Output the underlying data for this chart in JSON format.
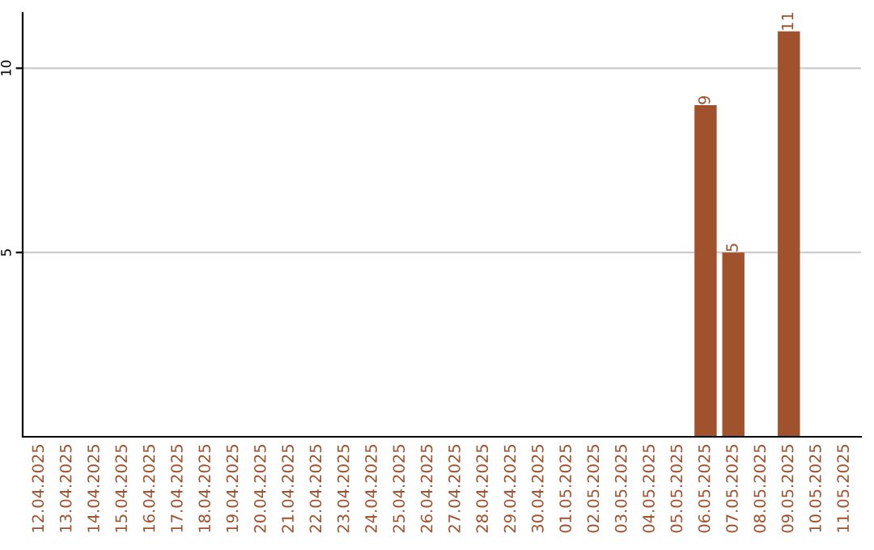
{
  "chart_data": {
    "type": "bar",
    "categories": [
      "12.04.2025",
      "13.04.2025",
      "14.04.2025",
      "15.04.2025",
      "16.04.2025",
      "17.04.2025",
      "18.04.2025",
      "19.04.2025",
      "20.04.2025",
      "21.04.2025",
      "22.04.2025",
      "23.04.2025",
      "24.04.2025",
      "25.04.2025",
      "26.04.2025",
      "27.04.2025",
      "28.04.2025",
      "29.04.2025",
      "30.04.2025",
      "01.05.2025",
      "02.05.2025",
      "03.05.2025",
      "04.05.2025",
      "05.05.2025",
      "06.05.2025",
      "07.05.2025",
      "08.05.2025",
      "09.05.2025",
      "10.05.2025",
      "11.05.2025"
    ],
    "values": [
      0,
      0,
      0,
      0,
      0,
      0,
      0,
      0,
      0,
      0,
      0,
      0,
      0,
      0,
      0,
      0,
      0,
      0,
      0,
      0,
      0,
      0,
      0,
      0,
      9,
      5,
      0,
      11,
      0,
      0
    ],
    "value_labels": [
      null,
      null,
      null,
      null,
      null,
      null,
      null,
      null,
      null,
      null,
      null,
      null,
      null,
      null,
      null,
      null,
      null,
      null,
      null,
      null,
      null,
      null,
      null,
      null,
      "9",
      "5",
      null,
      "11",
      null,
      null
    ],
    "color": "#a0522d",
    "ylim": [
      0,
      11.5
    ],
    "yticks": [
      5,
      10
    ],
    "grid": "y"
  }
}
